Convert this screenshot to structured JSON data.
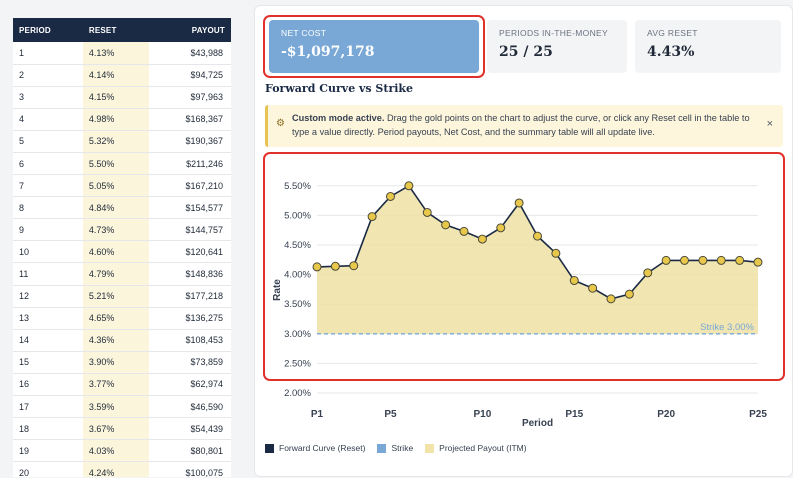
{
  "table": {
    "headers": {
      "period": "PERIOD",
      "reset": "RESET",
      "payout": "PAYOUT"
    },
    "rows": [
      {
        "period": "1",
        "reset": "4.13%",
        "payout": "$43,988"
      },
      {
        "period": "2",
        "reset": "4.14%",
        "payout": "$94,725"
      },
      {
        "period": "3",
        "reset": "4.15%",
        "payout": "$97,963"
      },
      {
        "period": "4",
        "reset": "4.98%",
        "payout": "$168,367"
      },
      {
        "period": "5",
        "reset": "5.32%",
        "payout": "$190,367"
      },
      {
        "period": "6",
        "reset": "5.50%",
        "payout": "$211,246"
      },
      {
        "period": "7",
        "reset": "5.05%",
        "payout": "$167,210"
      },
      {
        "period": "8",
        "reset": "4.84%",
        "payout": "$154,577"
      },
      {
        "period": "9",
        "reset": "4.73%",
        "payout": "$144,757"
      },
      {
        "period": "10",
        "reset": "4.60%",
        "payout": "$120,641"
      },
      {
        "period": "11",
        "reset": "4.79%",
        "payout": "$148,836"
      },
      {
        "period": "12",
        "reset": "5.21%",
        "payout": "$177,218"
      },
      {
        "period": "13",
        "reset": "4.65%",
        "payout": "$136,275"
      },
      {
        "period": "14",
        "reset": "4.36%",
        "payout": "$108,453"
      },
      {
        "period": "15",
        "reset": "3.90%",
        "payout": "$73,859"
      },
      {
        "period": "16",
        "reset": "3.77%",
        "payout": "$62,974"
      },
      {
        "period": "17",
        "reset": "3.59%",
        "payout": "$46,590"
      },
      {
        "period": "18",
        "reset": "3.67%",
        "payout": "$54,439"
      },
      {
        "period": "19",
        "reset": "4.03%",
        "payout": "$80,801"
      },
      {
        "period": "20",
        "reset": "4.24%",
        "payout": "$100,075"
      }
    ]
  },
  "summary": {
    "net_cost": {
      "label": "NET COST",
      "value": "-$1,097,178"
    },
    "periods_itm": {
      "label": "PERIODS IN-THE-MONEY",
      "value": "25 / 25"
    },
    "avg_reset": {
      "label": "AVG RESET",
      "value": "4.43%"
    }
  },
  "section_title": "Forward Curve vs Strike",
  "banner": {
    "bold": "Custom mode active.",
    "text": " Drag the gold points on the chart to adjust the curve, or click any Reset cell in the table to type a value directly. Period payouts, Net Cost, and the summary table will all update live.",
    "icon": "gear-icon",
    "close": "×"
  },
  "chart_data": {
    "type": "line",
    "x": [
      1,
      2,
      3,
      4,
      5,
      6,
      7,
      8,
      9,
      10,
      11,
      12,
      13,
      14,
      15,
      16,
      17,
      18,
      19,
      20,
      21,
      22,
      23,
      24,
      25
    ],
    "xticks": [
      1,
      5,
      10,
      15,
      20,
      25
    ],
    "xtick_labels": [
      "P1",
      "P5",
      "P10",
      "P15",
      "P20",
      "P25"
    ],
    "series": [
      {
        "name": "Forward Curve (Reset)",
        "values": [
          4.13,
          4.14,
          4.15,
          4.98,
          5.32,
          5.5,
          5.05,
          4.84,
          4.73,
          4.6,
          4.79,
          5.21,
          4.65,
          4.36,
          3.9,
          3.77,
          3.59,
          3.67,
          4.03,
          4.24,
          4.24,
          4.24,
          4.24,
          4.24,
          4.21
        ]
      },
      {
        "name": "Strike",
        "values": [
          3.0,
          3.0,
          3.0,
          3.0,
          3.0,
          3.0,
          3.0,
          3.0,
          3.0,
          3.0,
          3.0,
          3.0,
          3.0,
          3.0,
          3.0,
          3.0,
          3.0,
          3.0,
          3.0,
          3.0,
          3.0,
          3.0,
          3.0,
          3.0,
          3.0
        ]
      }
    ],
    "area_label": "Projected Payout (ITM)",
    "strike_label": "Strike 3.00%",
    "yticks": [
      2.0,
      2.5,
      3.0,
      3.5,
      4.0,
      4.5,
      5.0,
      5.5
    ],
    "ytick_labels": [
      "2.00%",
      "2.50%",
      "3.00%",
      "3.50%",
      "4.00%",
      "4.50%",
      "5.00%",
      "5.50%"
    ],
    "ylim": [
      2.0,
      5.75
    ],
    "xlabel": "Period",
    "ylabel": "Rate",
    "colors": {
      "line": "#1a2a44",
      "point": "#e8c84a",
      "area": "#efe0a3",
      "strike": "#7aa8d6"
    }
  },
  "legend": [
    {
      "label": "Forward Curve (Reset)",
      "color": "#1a2a44"
    },
    {
      "label": "Strike",
      "color": "#7aa8d6"
    },
    {
      "label": "Projected Payout (ITM)",
      "color": "#f2e4a8"
    }
  ]
}
